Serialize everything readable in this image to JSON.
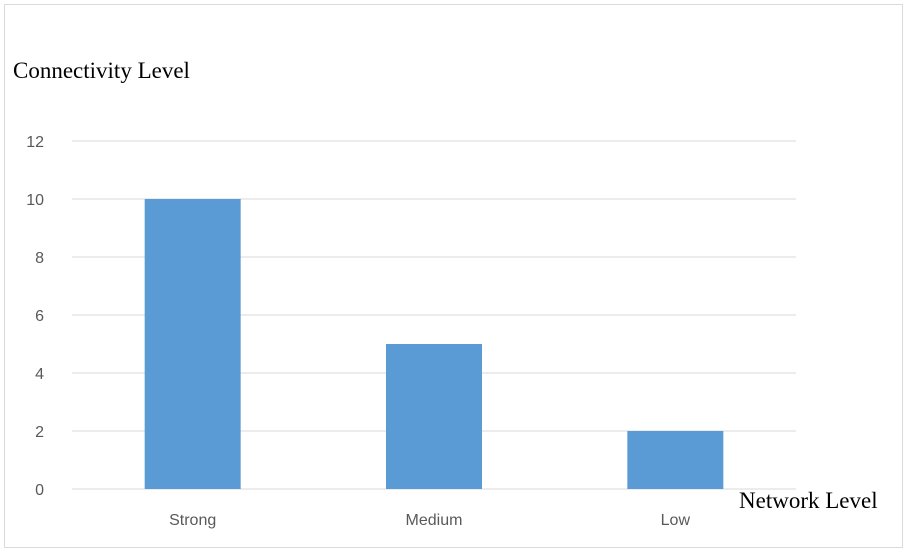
{
  "chart_data": {
    "type": "bar",
    "title": "",
    "ylabel": "Connectivity Level",
    "xlabel": "Network Level",
    "categories": [
      "Strong",
      "Medium",
      "Low"
    ],
    "values": [
      10,
      5,
      2
    ],
    "ylim": [
      0,
      12
    ],
    "yticks": [
      "0",
      "2",
      "4",
      "6",
      "8",
      "10",
      "12"
    ],
    "grid": true,
    "legend": "none",
    "bar_color": "#5b9bd5",
    "grid_color": "#d9d9d9"
  }
}
